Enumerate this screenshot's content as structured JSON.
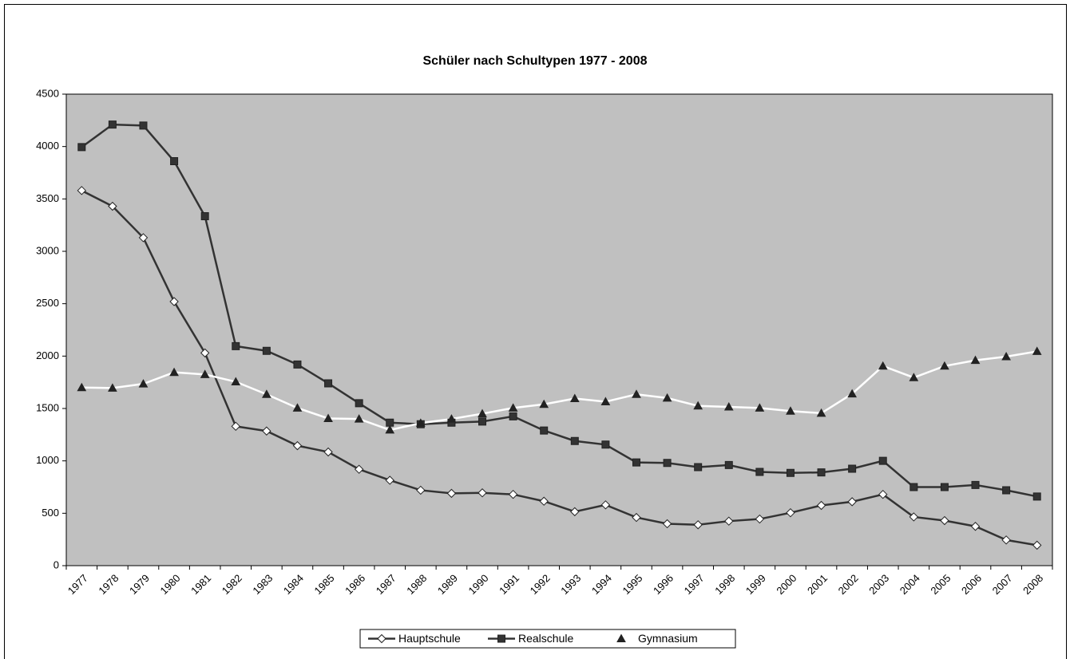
{
  "chart_data": {
    "type": "line",
    "title": "Schüler nach Schultypen 1977 - 2008",
    "categories": [
      "1977",
      "1978",
      "1979",
      "1980",
      "1981",
      "1982",
      "1983",
      "1984",
      "1985",
      "1986",
      "1987",
      "1988",
      "1989",
      "1990",
      "1991",
      "1992",
      "1993",
      "1994",
      "1995",
      "1996",
      "1997",
      "1998",
      "1999",
      "2000",
      "2001",
      "2002",
      "2003",
      "2004",
      "2005",
      "2006",
      "2007",
      "2008"
    ],
    "series": [
      {
        "name": "Hauptschule",
        "color": "#333333",
        "marker": "diamond",
        "marker_fill": "#ffffff",
        "values": [
          3580,
          3430,
          3130,
          2520,
          2030,
          1330,
          1285,
          1145,
          1085,
          920,
          815,
          720,
          690,
          695,
          680,
          615,
          515,
          580,
          460,
          400,
          390,
          425,
          445,
          505,
          575,
          610,
          680,
          465,
          430,
          375,
          245,
          195
        ]
      },
      {
        "name": "Realschule",
        "color": "#333333",
        "marker": "square",
        "marker_fill": "#333333",
        "values": [
          3995,
          4210,
          4200,
          3860,
          3335,
          2095,
          2050,
          1920,
          1740,
          1550,
          1365,
          1350,
          1365,
          1375,
          1425,
          1290,
          1190,
          1155,
          985,
          980,
          940,
          960,
          895,
          885,
          890,
          925,
          1000,
          750,
          750,
          770,
          720,
          660
        ]
      },
      {
        "name": "Gymnasium",
        "color": "#ffffff",
        "marker": "triangle",
        "marker_fill": "#222222",
        "values": [
          1700,
          1695,
          1735,
          1845,
          1825,
          1755,
          1635,
          1505,
          1405,
          1400,
          1295,
          1360,
          1400,
          1450,
          1505,
          1540,
          1595,
          1565,
          1635,
          1600,
          1525,
          1515,
          1505,
          1475,
          1455,
          1640,
          1905,
          1795,
          1905,
          1960,
          1995,
          2045
        ]
      }
    ],
    "ylim": [
      0,
      4500
    ],
    "yticks": [
      0,
      500,
      1000,
      1500,
      2000,
      2500,
      3000,
      3500,
      4000,
      4500
    ],
    "grid": false,
    "plot_background": "#c0c0c0",
    "legend": "bottom"
  }
}
